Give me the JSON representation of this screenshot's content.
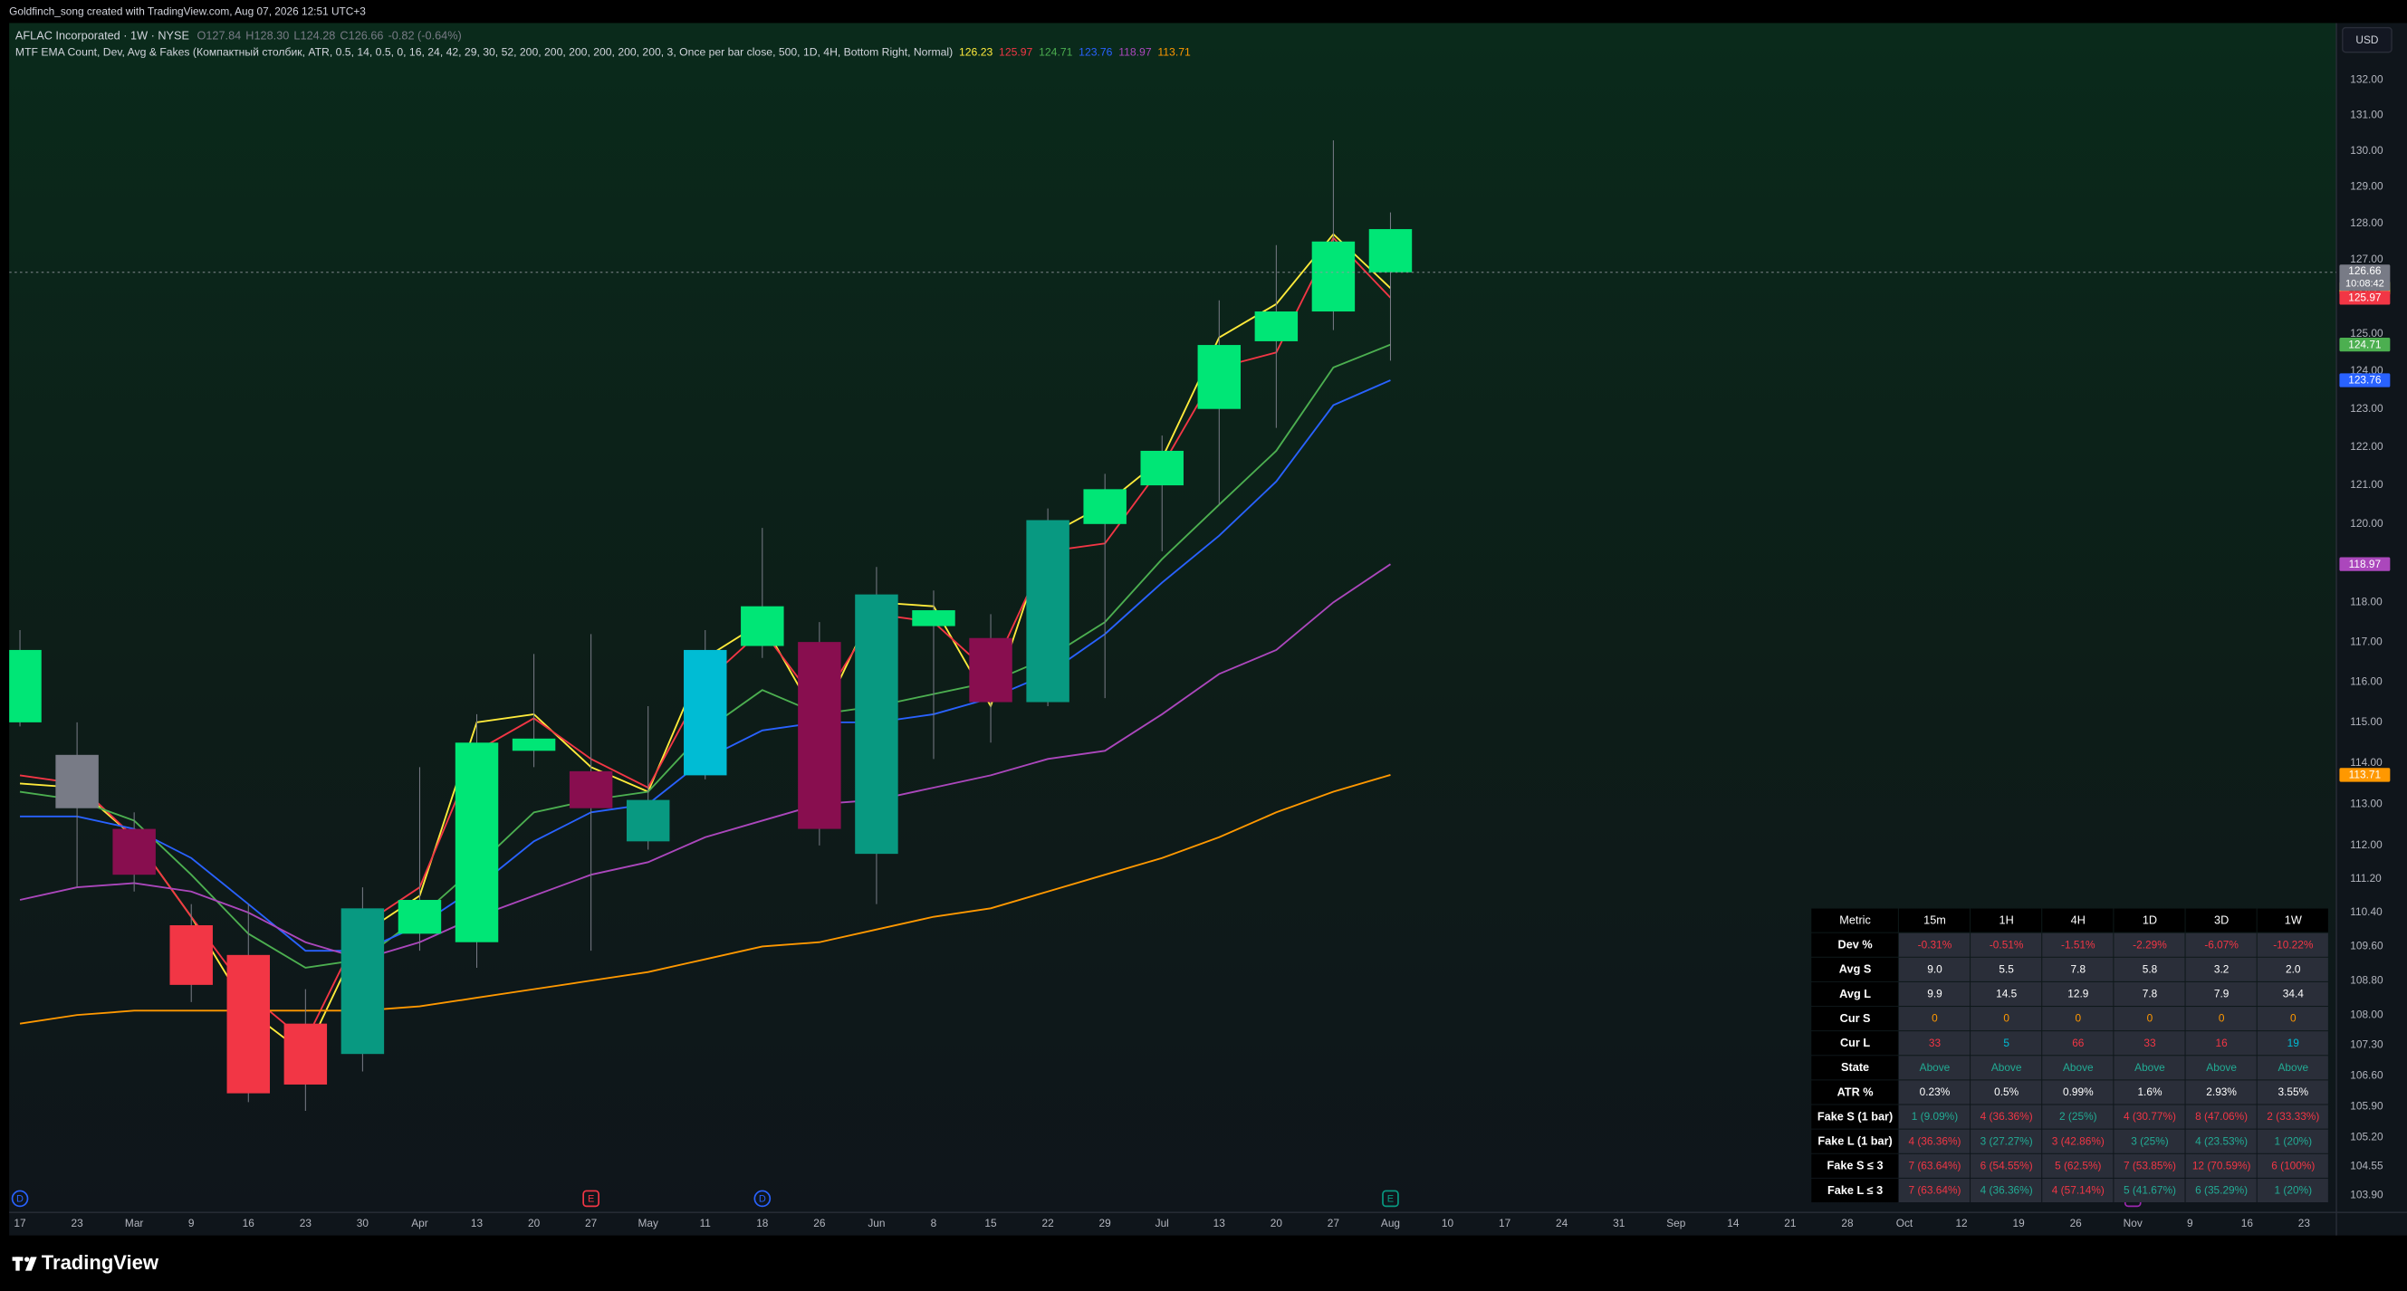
{
  "header": {
    "credit": "Goldfinch_song created with TradingView.com, Aug 07, 2026 12:51 UTC+3",
    "symbol": "AFLAC Incorporated · 1W · NYSE",
    "ohlc_labels": [
      "O",
      "H",
      "L",
      "C"
    ],
    "ohlc": [
      "127.84",
      "128.30",
      "124.28",
      "126.66"
    ],
    "change": "-0.82 (-0.64%)",
    "indicator": "MTF EMA Count, Dev, Avg & Fakes (Компактный столбик, ATR, 0.5, 14, 0.5, 0, 16, 24, 42, 29, 30, 52, 200, 200, 200, 200, 200, 200, 3, Once per bar close, 500, 1D, 4H, Bottom Right, Normal)",
    "currency": "USD",
    "countdown": "10:08:42",
    "brand": "TradingView"
  },
  "chart_data": {
    "type": "candlestick",
    "log_scale": true,
    "grid": false,
    "categories": [
      "17",
      "23",
      "Mar",
      "9",
      "16",
      "23",
      "30",
      "Apr",
      "13",
      "20",
      "27",
      "May",
      "11",
      "18",
      "26",
      "Jun",
      "8",
      "15",
      "22",
      "29",
      "Jul",
      "13",
      "20",
      "27",
      "Aug",
      "10",
      "17",
      "24",
      "31",
      "Sep",
      "14",
      "21",
      "28",
      "Oct",
      "12",
      "19",
      "26",
      "Nov",
      "9",
      "16",
      "23"
    ],
    "open": [
      115.0,
      114.2,
      112.4,
      110.1,
      109.4,
      107.8,
      107.1,
      109.9,
      109.7,
      114.3,
      113.8,
      112.1,
      113.7,
      116.9,
      117.0,
      111.8,
      117.4,
      117.1,
      115.5,
      120.0,
      121.0,
      123.0,
      124.8,
      125.6,
      127.84,
      null,
      null,
      null,
      null,
      null,
      null,
      null,
      null,
      null,
      null,
      null,
      null,
      null,
      null,
      null,
      null
    ],
    "high": [
      117.3,
      115.0,
      112.8,
      110.6,
      110.6,
      108.6,
      111.0,
      113.9,
      115.2,
      116.7,
      117.2,
      115.4,
      117.3,
      119.9,
      117.5,
      118.9,
      118.3,
      117.7,
      120.4,
      121.3,
      122.3,
      125.9,
      127.4,
      130.3,
      128.3,
      null,
      null,
      null,
      null,
      null,
      null,
      null,
      null,
      null,
      null,
      null,
      null,
      null,
      null,
      null,
      null
    ],
    "low": [
      114.9,
      111.0,
      110.9,
      108.3,
      106.0,
      105.8,
      106.7,
      109.5,
      109.1,
      113.9,
      109.5,
      111.9,
      113.6,
      116.6,
      112.0,
      110.6,
      114.1,
      114.5,
      115.4,
      115.6,
      119.3,
      120.5,
      122.5,
      125.1,
      124.28,
      null,
      null,
      null,
      null,
      null,
      null,
      null,
      null,
      null,
      null,
      null,
      null,
      null,
      null,
      null,
      null
    ],
    "close": [
      116.8,
      112.9,
      111.3,
      108.7,
      106.2,
      106.4,
      110.5,
      110.7,
      114.5,
      114.6,
      112.9,
      113.1,
      116.8,
      117.9,
      112.4,
      118.2,
      117.8,
      115.5,
      120.1,
      120.9,
      121.9,
      124.7,
      125.6,
      127.5,
      126.66,
      null,
      null,
      null,
      null,
      null,
      null,
      null,
      null,
      null,
      null,
      null,
      null,
      null,
      null,
      null,
      null
    ],
    "colors": [
      "#00e676",
      "#787b86",
      "#880e4f",
      "#f23645",
      "#f23645",
      "#f23645",
      "#089981",
      "#00e676",
      "#00e676",
      "#00e676",
      "#880e4f",
      "#089981",
      "#00bcd4",
      "#00e676",
      "#880e4f",
      "#089981",
      "#00e676",
      "#880e4f",
      "#089981",
      "#00e676",
      "#00e676",
      "#00e676",
      "#00e676",
      "#00e676",
      "#00e676",
      null,
      null,
      null,
      null,
      null,
      null,
      null,
      null,
      null,
      null,
      null,
      null,
      null,
      null,
      null,
      null
    ],
    "series": [
      {
        "color": "#ffeb3b",
        "values": [
          113.5,
          113.4,
          112.2,
          110.3,
          108.1,
          107.1,
          109.9,
          110.8,
          115.0,
          115.2,
          113.9,
          113.3,
          116.6,
          117.5,
          115.0,
          118.0,
          117.9,
          115.4,
          119.7,
          120.5,
          121.7,
          124.9,
          125.8,
          127.7,
          126.23,
          null,
          null,
          null,
          null,
          null,
          null,
          null,
          null,
          null,
          null,
          null,
          null,
          null,
          null,
          null,
          null
        ]
      },
      {
        "color": "#f23645",
        "values": [
          113.7,
          113.5,
          112.2,
          110.3,
          108.5,
          107.4,
          110.1,
          111.0,
          114.3,
          115.1,
          114.1,
          113.4,
          116.0,
          117.3,
          115.4,
          117.7,
          117.5,
          116.2,
          119.3,
          119.5,
          121.5,
          124.1,
          124.5,
          127.6,
          125.97,
          null,
          null,
          null,
          null,
          null,
          null,
          null,
          null,
          null,
          null,
          null,
          null,
          null,
          null,
          null,
          null
        ]
      },
      {
        "color": "#4caf50",
        "values": [
          113.3,
          113.1,
          112.6,
          111.3,
          109.9,
          109.1,
          109.3,
          110.3,
          111.5,
          112.8,
          113.1,
          113.3,
          114.8,
          115.8,
          115.2,
          115.4,
          115.7,
          116.0,
          116.6,
          117.5,
          119.1,
          120.5,
          121.9,
          124.1,
          124.71,
          null,
          null,
          null,
          null,
          null,
          null,
          null,
          null,
          null,
          null,
          null,
          null,
          null,
          null,
          null,
          null
        ]
      },
      {
        "color": "#2962ff",
        "values": [
          112.7,
          112.7,
          112.4,
          111.7,
          110.6,
          109.5,
          109.5,
          110.1,
          111.0,
          112.1,
          112.8,
          113.0,
          114.1,
          114.8,
          115.0,
          115.0,
          115.2,
          115.6,
          116.2,
          117.2,
          118.5,
          119.7,
          121.1,
          123.1,
          123.76,
          null,
          null,
          null,
          null,
          null,
          null,
          null,
          null,
          null,
          null,
          null,
          null,
          null,
          null,
          null,
          null
        ]
      },
      {
        "color": "#ab47bc",
        "values": [
          110.7,
          111.0,
          111.1,
          110.9,
          110.4,
          109.7,
          109.3,
          109.7,
          110.3,
          110.8,
          111.3,
          111.6,
          112.2,
          112.6,
          113.0,
          113.1,
          113.4,
          113.7,
          114.1,
          114.3,
          115.2,
          116.2,
          116.8,
          118.0,
          118.97,
          null,
          null,
          null,
          null,
          null,
          null,
          null,
          null,
          null,
          null,
          null,
          null,
          null,
          null,
          null,
          null
        ]
      },
      {
        "color": "#ff9800",
        "values": [
          107.8,
          108.0,
          108.1,
          108.1,
          108.1,
          108.1,
          108.1,
          108.2,
          108.4,
          108.6,
          108.8,
          109.0,
          109.3,
          109.6,
          109.7,
          110.0,
          110.3,
          110.5,
          110.9,
          111.3,
          111.7,
          112.2,
          112.8,
          113.3,
          113.71,
          null,
          null,
          null,
          null,
          null,
          null,
          null,
          null,
          null,
          null,
          null,
          null,
          null,
          null,
          null,
          null
        ]
      }
    ],
    "ylim": [
      103.52,
      133.62
    ],
    "yticks": [
      {
        "value": 132,
        "label": "132.00"
      },
      {
        "value": 131,
        "label": "131.00"
      },
      {
        "value": 130,
        "label": "130.00"
      },
      {
        "value": 129,
        "label": "129.00"
      },
      {
        "value": 128,
        "label": "128.00"
      },
      {
        "value": 127,
        "label": "127.00"
      },
      {
        "value": 125,
        "label": "125.00"
      },
      {
        "value": 124,
        "label": "124.00"
      },
      {
        "value": 123,
        "label": "123.00"
      },
      {
        "value": 122,
        "label": "122.00"
      },
      {
        "value": 121,
        "label": "121.00"
      },
      {
        "value": 120,
        "label": "120.00"
      },
      {
        "value": 118,
        "label": "118.00"
      },
      {
        "value": 117,
        "label": "117.00"
      },
      {
        "value": 116,
        "label": "116.00"
      },
      {
        "value": 115,
        "label": "115.00"
      },
      {
        "value": 114,
        "label": "114.00"
      },
      {
        "value": 113,
        "label": "113.00"
      },
      {
        "value": 112,
        "label": "112.00"
      },
      {
        "value": 111.2,
        "label": "111.20"
      },
      {
        "value": 110.4,
        "label": "110.40"
      },
      {
        "value": 109.6,
        "label": "109.60"
      },
      {
        "value": 108.8,
        "label": "108.80"
      },
      {
        "value": 108,
        "label": "108.00"
      },
      {
        "value": 107.3,
        "label": "107.30"
      },
      {
        "value": 106.6,
        "label": "106.60"
      },
      {
        "value": 105.9,
        "label": "105.90"
      },
      {
        "value": 105.2,
        "label": "105.20"
      },
      {
        "value": 104.55,
        "label": "104.55"
      },
      {
        "value": 103.9,
        "label": "103.90"
      }
    ],
    "events": [
      {
        "label": "D",
        "index": 0,
        "color": "#2962ff"
      },
      {
        "label": "E",
        "index": 10,
        "color": "#f23645"
      },
      {
        "label": "D",
        "index": 13,
        "color": "#2962ff"
      },
      {
        "label": "E",
        "index": 24,
        "color": "#089981"
      },
      {
        "label": "E",
        "index": 37,
        "color": "#9c27b0"
      }
    ]
  },
  "table": {
    "palette": {
      "red": "#f23645",
      "green": "#22ab94",
      "white": "#ffffff",
      "orange": "#ff9800",
      "cyan": "#00bcd4"
    },
    "header": [
      "Metric",
      "15m",
      "1H",
      "4H",
      "1D",
      "3D",
      "1W"
    ],
    "rows": [
      [
        "Dev %",
        "-0.31%",
        "-0.51%",
        "-1.51%",
        "-2.29%",
        "-6.07%",
        "-10.22%"
      ],
      [
        "Avg S",
        "9.0",
        "5.5",
        "7.8",
        "5.8",
        "3.2",
        "2.0"
      ],
      [
        "Avg L",
        "9.9",
        "14.5",
        "12.9",
        "7.8",
        "7.9",
        "34.4"
      ],
      [
        "Cur S",
        "0",
        "0",
        "0",
        "0",
        "0",
        "0"
      ],
      [
        "Cur L",
        "33",
        "5",
        "66",
        "33",
        "16",
        "19"
      ],
      [
        "State",
        "Above",
        "Above",
        "Above",
        "Above",
        "Above",
        "Above"
      ],
      [
        "ATR %",
        "0.23%",
        "0.5%",
        "0.99%",
        "1.6%",
        "2.93%",
        "3.55%"
      ],
      [
        "Fake S (1 bar)",
        "1 (9.09%)",
        "4 (36.36%)",
        "2 (25%)",
        "4 (30.77%)",
        "8 (47.06%)",
        "2 (33.33%)"
      ],
      [
        "Fake L (1 bar)",
        "4 (36.36%)",
        "3 (27.27%)",
        "3 (42.86%)",
        "3 (25%)",
        "4 (23.53%)",
        "1 (20%)"
      ],
      [
        "Fake S ≤ 3",
        "7 (63.64%)",
        "6 (54.55%)",
        "5 (62.5%)",
        "7 (53.85%)",
        "12 (70.59%)",
        "6 (100%)"
      ],
      [
        "Fake L ≤ 3",
        "7 (63.64%)",
        "4 (36.36%)",
        "4 (57.14%)",
        "5 (41.67%)",
        "6 (35.29%)",
        "1 (20%)"
      ]
    ],
    "colors": [
      [
        "red",
        "red",
        "red",
        "red",
        "red",
        "red"
      ],
      [
        "white",
        "white",
        "white",
        "white",
        "white",
        "white"
      ],
      [
        "white",
        "white",
        "white",
        "white",
        "white",
        "white"
      ],
      [
        "orange",
        "orange",
        "orange",
        "orange",
        "orange",
        "orange"
      ],
      [
        "red",
        "cyan",
        "red",
        "red",
        "red",
        "cyan"
      ],
      [
        "green",
        "green",
        "green",
        "green",
        "green",
        "green"
      ],
      [
        "white",
        "white",
        "white",
        "white",
        "white",
        "white"
      ],
      [
        "green",
        "red",
        "green",
        "red",
        "red",
        "red"
      ],
      [
        "red",
        "green",
        "red",
        "green",
        "green",
        "green"
      ],
      [
        "red",
        "red",
        "red",
        "red",
        "red",
        "red"
      ],
      [
        "red",
        "green",
        "red",
        "green",
        "green",
        "green"
      ]
    ]
  }
}
